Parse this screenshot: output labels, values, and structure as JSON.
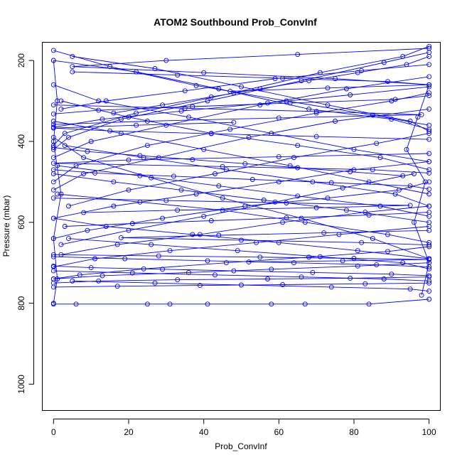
{
  "chart_data": {
    "type": "line",
    "title": "ATOM2 Southbound Prob_ConvInf",
    "xlabel": "Prob_ConvInf",
    "ylabel": "Pressure (mbar)",
    "xlim": [
      -3,
      103
    ],
    "ylim": [
      1065,
      155
    ],
    "y_reversed": true,
    "x_ticks": [
      0,
      20,
      40,
      60,
      80,
      100
    ],
    "y_ticks": [
      200,
      400,
      600,
      800,
      1000
    ],
    "grid": false,
    "legend": "none",
    "colors": {
      "series": "#0000ff",
      "axes": "#000000"
    },
    "marker": "open-circle",
    "series": [
      {
        "x": [
          100,
          93,
          71,
          48,
          22,
          3,
          0
        ],
        "y": [
          165,
          190,
          230,
          280,
          330,
          380,
          410
        ]
      },
      {
        "x": [
          0,
          15,
          38,
          62,
          85,
          100
        ],
        "y": [
          175,
          215,
          262,
          300,
          335,
          360
        ]
      },
      {
        "x": [
          100,
          88,
          66,
          41,
          18,
          4,
          0
        ],
        "y": [
          180,
          205,
          250,
          300,
          345,
          390,
          420
        ]
      },
      {
        "x": [
          0,
          22,
          44,
          68,
          90,
          100
        ],
        "y": [
          200,
          228,
          270,
          320,
          345,
          370
        ]
      },
      {
        "x": [
          100,
          82,
          59,
          35,
          14,
          2
        ],
        "y": [
          210,
          225,
          245,
          275,
          300,
          320
        ]
      },
      {
        "x": [
          5,
          27,
          50,
          73,
          95,
          100
        ],
        "y": [
          190,
          220,
          265,
          310,
          350,
          375
        ]
      },
      {
        "x": [
          100,
          78,
          55,
          30,
          10,
          0
        ],
        "y": [
          240,
          270,
          310,
          360,
          400,
          440
        ]
      },
      {
        "x": [
          0,
          12,
          36,
          58,
          80,
          100
        ],
        "y": [
          260,
          300,
          340,
          380,
          420,
          450
        ]
      },
      {
        "x": [
          100,
          90,
          70,
          47,
          25,
          6,
          0
        ],
        "y": [
          280,
          300,
          330,
          370,
          410,
          460,
          500
        ]
      },
      {
        "x": [
          2,
          20,
          42,
          65,
          87,
          100
        ],
        "y": [
          300,
          340,
          380,
          410,
          440,
          470
        ]
      },
      {
        "x": [
          100,
          75,
          52,
          28,
          8,
          0
        ],
        "y": [
          320,
          350,
          390,
          440,
          480,
          520
        ]
      },
      {
        "x": [
          0,
          18,
          40,
          63,
          84,
          100
        ],
        "y": [
          350,
          380,
          420,
          460,
          500,
          530
        ]
      },
      {
        "x": [
          100,
          86,
          64,
          43,
          20,
          4
        ],
        "y": [
          380,
          405,
          440,
          480,
          520,
          560
        ]
      },
      {
        "x": [
          3,
          24,
          46,
          69,
          91,
          100
        ],
        "y": [
          410,
          440,
          470,
          500,
          530,
          560
        ]
      },
      {
        "x": [
          100,
          80,
          60,
          38,
          16,
          0
        ],
        "y": [
          450,
          470,
          500,
          530,
          560,
          590
        ]
      },
      {
        "x": [
          0,
          16,
          34,
          56,
          78,
          100
        ],
        "y": [
          480,
          500,
          520,
          545,
          570,
          600
        ]
      },
      {
        "x": [
          100,
          92,
          73,
          51,
          29,
          9,
          0
        ],
        "y": [
          500,
          520,
          540,
          560,
          590,
          620,
          640
        ]
      },
      {
        "x": [
          1,
          23,
          45,
          67,
          89,
          100
        ],
        "y": [
          530,
          550,
          570,
          600,
          630,
          650
        ]
      },
      {
        "x": [
          100,
          83,
          61,
          39,
          17,
          2
        ],
        "y": [
          560,
          575,
          600,
          630,
          655,
          680
        ]
      },
      {
        "x": [
          0,
          14,
          37,
          60,
          81,
          100
        ],
        "y": [
          590,
          610,
          630,
          650,
          670,
          690
        ]
      },
      {
        "x": [
          100,
          76,
          54,
          31,
          11,
          0
        ],
        "y": [
          610,
          630,
          650,
          670,
          690,
          710
        ]
      },
      {
        "x": [
          4,
          26,
          49,
          71,
          93,
          100
        ],
        "y": [
          640,
          655,
          670,
          685,
          700,
          715
        ]
      },
      {
        "x": [
          100,
          89,
          68,
          46,
          24,
          7,
          0
        ],
        "y": [
          660,
          672,
          686,
          700,
          715,
          730,
          740
        ]
      },
      {
        "x": [
          0,
          19,
          41,
          64,
          86,
          100
        ],
        "y": [
          685,
          690,
          695,
          700,
          705,
          710
        ]
      },
      {
        "x": [
          100,
          81,
          58,
          36,
          13,
          0
        ],
        "y": [
          700,
          708,
          716,
          724,
          732,
          740
        ]
      },
      {
        "x": [
          0,
          21,
          43,
          66,
          88,
          100
        ],
        "y": [
          720,
          725,
          730,
          735,
          740,
          745
        ]
      },
      {
        "x": [
          100,
          79,
          57,
          33,
          12,
          0
        ],
        "y": [
          735,
          738,
          740,
          742,
          745,
          750
        ]
      },
      {
        "x": [
          0,
          17,
          39,
          61,
          83,
          100
        ],
        "y": [
          760,
          758,
          756,
          754,
          752,
          750
        ]
      },
      {
        "x": [
          100,
          95,
          74,
          50,
          27,
          5
        ],
        "y": [
          770,
          765,
          760,
          755,
          750,
          745
        ]
      },
      {
        "x": [
          0,
          6,
          25,
          31,
          41,
          58,
          67,
          84,
          100
        ],
        "y": [
          802,
          802,
          802,
          802,
          802,
          802,
          802,
          802,
          790
        ]
      },
      {
        "x": [
          100,
          97,
          94,
          99,
          96,
          100,
          98
        ],
        "y": [
          260,
          340,
          420,
          500,
          600,
          700,
          780
        ]
      },
      {
        "x": [
          0,
          1,
          0,
          2,
          0,
          1,
          0
        ],
        "y": [
          200,
          300,
          400,
          530,
          640,
          740,
          800
        ]
      },
      {
        "x": [
          100,
          65,
          30,
          5,
          40,
          75,
          100
        ],
        "y": [
          170,
          185,
          200,
          215,
          230,
          245,
          260
        ]
      },
      {
        "x": [
          0,
          35,
          70,
          98,
          60,
          25,
          0
        ],
        "y": [
          310,
          318,
          326,
          334,
          342,
          350,
          358
        ]
      },
      {
        "x": [
          100,
          60,
          20,
          0,
          45,
          85,
          100
        ],
        "y": [
          430,
          438,
          446,
          454,
          462,
          470,
          478
        ]
      },
      {
        "x": [
          0,
          30,
          62,
          95,
          70,
          33,
          8
        ],
        "y": [
          540,
          546,
          552,
          558,
          564,
          570,
          576
        ]
      },
      {
        "x": [
          100,
          72,
          44,
          18,
          50,
          82,
          100
        ],
        "y": [
          620,
          626,
          632,
          638,
          644,
          650,
          656
        ]
      },
      {
        "x": [
          0,
          28,
          55,
          80,
          100,
          77,
          52
        ],
        "y": [
          680,
          683,
          686,
          689,
          692,
          695,
          698
        ]
      },
      {
        "x": [
          100,
          70,
          42,
          15,
          0,
          22,
          48
        ],
        "y": [
          395,
          388,
          381,
          374,
          367,
          360,
          353
        ]
      },
      {
        "x": [
          5,
          33,
          61,
          89,
          100,
          73,
          47
        ],
        "y": [
          228,
          236,
          244,
          252,
          260,
          268,
          276
        ]
      },
      {
        "x": [
          100,
          91,
          63,
          37,
          12,
          0
        ],
        "y": [
          287,
          296,
          305,
          314,
          323,
          332
        ]
      },
      {
        "x": [
          0,
          11,
          32,
          53,
          74,
          95,
          100
        ],
        "y": [
          470,
          478,
          486,
          494,
          502,
          510,
          518
        ]
      },
      {
        "x": [
          100,
          84,
          62,
          42,
          21,
          3
        ],
        "y": [
          575,
          582,
          589,
          596,
          603,
          610
        ]
      },
      {
        "x": [
          0,
          10,
          29,
          48,
          69,
          90,
          100
        ],
        "y": [
          708,
          712,
          716,
          720,
          724,
          728,
          732
        ]
      },
      {
        "x": [
          100,
          87,
          65,
          44,
          23,
          1
        ],
        "y": [
          585,
          560,
          535,
          510,
          485,
          460
        ]
      },
      {
        "x": [
          0,
          13,
          34,
          57,
          79,
          100
        ],
        "y": [
          365,
          345,
          325,
          305,
          285,
          265
        ]
      },
      {
        "x": [
          100,
          85,
          66,
          45,
          26,
          8,
          0
        ],
        "y": [
          690,
          640,
          590,
          540,
          490,
          440,
          390
        ]
      },
      {
        "x": [
          2,
          20,
          40,
          59,
          77,
          96
        ],
        "y": [
          655,
          620,
          585,
          550,
          515,
          480
        ]
      },
      {
        "x": [
          100,
          94,
          81,
          68,
          55,
          42,
          29,
          16
        ],
        "y": [
          190,
          210,
          230,
          250,
          270,
          290,
          310,
          330
        ]
      },
      {
        "x": [
          0,
          9,
          23,
          37,
          51,
          65,
          79,
          93
        ],
        "y": [
          415,
          425,
          435,
          445,
          455,
          465,
          475,
          485
        ]
      }
    ]
  }
}
